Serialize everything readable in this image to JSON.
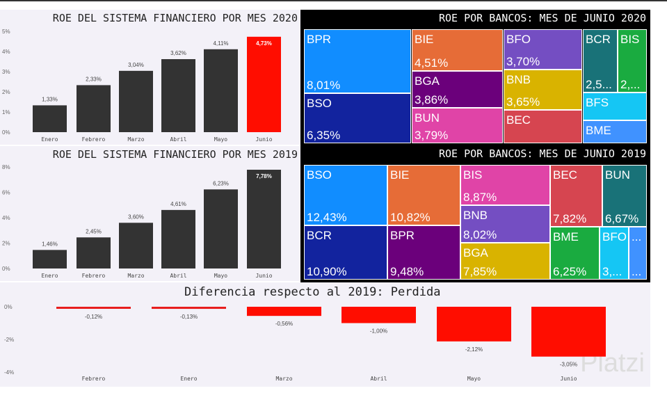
{
  "chart_data": [
    {
      "type": "bar",
      "title": "ROE DEL SISTEMA FINANCIERO POR MES 2020",
      "categories": [
        "Enero",
        "Febrero",
        "Marzo",
        "Abril",
        "Mayo",
        "Junio"
      ],
      "values": [
        1.33,
        2.33,
        3.04,
        3.62,
        4.11,
        4.73
      ],
      "labels": [
        "1,33%",
        "2,33%",
        "3,04%",
        "3,62%",
        "4,11%",
        "4,73%"
      ],
      "yticks": [
        "0%",
        "1%",
        "2%",
        "3%",
        "4%",
        "5%"
      ],
      "ylim": [
        0,
        5
      ],
      "colors": [
        "#333333",
        "#333333",
        "#333333",
        "#333333",
        "#333333",
        "#ff0d00"
      ]
    },
    {
      "type": "bar",
      "title": "ROE DEL SISTEMA FINANCIERO POR MES 2019",
      "categories": [
        "Enero",
        "Febrero",
        "Marzo",
        "Abril",
        "Mayo",
        "Junio"
      ],
      "values": [
        1.46,
        2.45,
        3.6,
        4.61,
        6.23,
        7.78
      ],
      "labels": [
        "1,46%",
        "2,45%",
        "3,60%",
        "4,61%",
        "6,23%",
        "7,78%"
      ],
      "yticks": [
        "0%",
        "2%",
        "4%",
        "6%",
        "8%"
      ],
      "ylim": [
        0,
        8
      ],
      "colors": [
        "#333333",
        "#333333",
        "#333333",
        "#333333",
        "#333333",
        "#333333"
      ]
    },
    {
      "type": "bar",
      "title": "Diferencia respecto al 2019: Perdida",
      "categories": [
        "Febrero",
        "Enero",
        "Marzo",
        "Abril",
        "Mayo",
        "Junio"
      ],
      "values": [
        -0.12,
        -0.13,
        -0.56,
        -1.0,
        -2.12,
        -3.05
      ],
      "labels": [
        "-0,12%",
        "-0,13%",
        "-0,56%",
        "-1,00%",
        "-2,12%",
        "-3,05%"
      ],
      "yticks": [
        "0%",
        "-2%",
        "-4%"
      ],
      "ylim": [
        -4,
        0
      ],
      "colors": [
        "#e81e1e",
        "#e81e1e",
        "#ff0d00",
        "#ff0d00",
        "#ff0d00",
        "#ff0d00"
      ]
    }
  ],
  "treemap_2020": {
    "title": "ROE POR BANCOS: MES DE JUNIO 2020",
    "cells": [
      {
        "name": "BPR",
        "value": "8,01%",
        "color": "#118dff"
      },
      {
        "name": "BSO",
        "value": "6,35%",
        "color": "#12239e"
      },
      {
        "name": "BIE",
        "value": "4,51%",
        "color": "#e66c37"
      },
      {
        "name": "BGA",
        "value": "3,86%",
        "color": "#6b007b"
      },
      {
        "name": "BUN",
        "value": "3,79%",
        "color": "#e044a7"
      },
      {
        "name": "BFO",
        "value": "3,70%",
        "color": "#744ec2"
      },
      {
        "name": "BNB",
        "value": "3,65%",
        "color": "#d9b300"
      },
      {
        "name": "BEC",
        "value": "",
        "color": "#d64550"
      },
      {
        "name": "BCR",
        "value": "2,5...",
        "color": "#197278"
      },
      {
        "name": "BIS",
        "value": "2,...",
        "color": "#1aab40"
      },
      {
        "name": "BFS",
        "value": "",
        "color": "#15c6f4"
      },
      {
        "name": "BME",
        "value": "",
        "color": "#4092ff"
      }
    ]
  },
  "treemap_2019": {
    "title": "ROE POR BANCOS: MES DE JUNIO 2019",
    "cells": [
      {
        "name": "BSO",
        "value": "12,43%",
        "color": "#118dff"
      },
      {
        "name": "BCR",
        "value": "10,90%",
        "color": "#12239e"
      },
      {
        "name": "BIE",
        "value": "10,82%",
        "color": "#e66c37"
      },
      {
        "name": "BPR",
        "value": "9,48%",
        "color": "#6b007b"
      },
      {
        "name": "BIS",
        "value": "8,87%",
        "color": "#e044a7"
      },
      {
        "name": "BNB",
        "value": "8,02%",
        "color": "#744ec2"
      },
      {
        "name": "BGA",
        "value": "7,85%",
        "color": "#d9b300"
      },
      {
        "name": "BEC",
        "value": "7,82%",
        "color": "#d64550"
      },
      {
        "name": "BUN",
        "value": "6,67%",
        "color": "#197278"
      },
      {
        "name": "BME",
        "value": "6,25%",
        "color": "#1aab40"
      },
      {
        "name": "BFO",
        "value": "3,...",
        "color": "#15c6f4"
      },
      {
        "name": "...",
        "value": "...",
        "color": "#4092ff"
      }
    ]
  },
  "watermark": "Platzi"
}
